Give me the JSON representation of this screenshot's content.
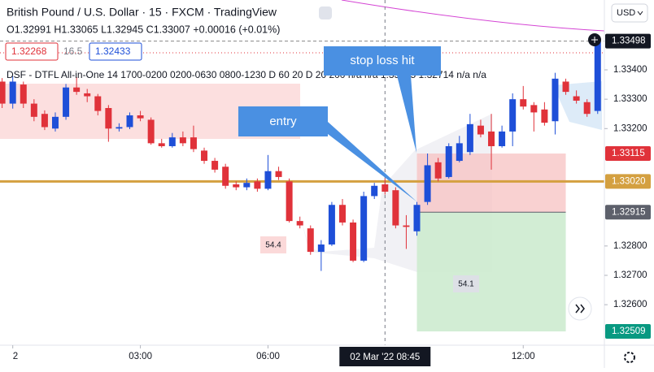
{
  "chart_data": {
    "type": "candlestick",
    "title": "British Pound / U.S. Dollar · 15 · FXCM · TradingView",
    "ohlc_text": "O1.32991 H1.33065 L1.32945 C1.33007 +0.00016 (+0.01%)",
    "bid": "1.32268",
    "spread": "16.5",
    "ask": "1.32433",
    "indicator_text": "DSF - DTFL All-in-One 14 1700-0200 0200-0630 0800-1230 D 60 20 D 20 200 n/a n/a 1.33065 1.32714 n/a n/a",
    "currency": "USD",
    "x": [
      -0.25,
      0,
      0.25,
      0.5,
      0.75,
      1,
      1.25,
      1.5,
      1.75,
      2,
      2.25,
      2.5,
      2.75,
      3,
      3.25,
      3.5,
      3.75,
      4,
      4.25,
      4.5,
      4.75,
      5,
      5.25,
      5.5,
      5.75,
      6,
      6.25,
      6.5,
      6.75,
      7,
      7.25,
      7.5,
      7.75,
      8,
      8.25,
      8.5,
      8.75,
      9,
      9.25,
      9.5,
      9.75,
      10,
      10.25,
      10.5,
      10.75,
      11,
      11.25,
      11.5,
      11.75,
      12,
      12.25,
      12.5,
      12.75,
      13,
      13.25,
      13.5,
      13.75
    ],
    "open": [
      1.3336,
      1.33285,
      1.3335,
      1.33285,
      1.3325,
      1.332,
      1.3324,
      1.3334,
      1.3332,
      1.3331,
      1.3327,
      1.332,
      1.33205,
      1.33245,
      1.3323,
      1.3315,
      1.3314,
      1.3317,
      1.3317,
      1.33125,
      1.3309,
      1.3307,
      1.3301,
      1.33,
      1.3302,
      1.32995,
      1.33055,
      1.3302,
      1.32885,
      1.3286,
      1.3278,
      1.32805,
      1.3294,
      1.3288,
      1.3275,
      1.3297,
      1.3301,
      1.3299,
      1.3287,
      1.3285,
      1.3295,
      1.33085,
      1.33035,
      1.3309,
      1.3312,
      1.3321,
      1.3319,
      1.3314,
      1.3319,
      1.333,
      1.3328,
      1.33265,
      1.33225,
      1.3336,
      1.3331,
      1.3329,
      1.3326
    ],
    "high": [
      1.33372,
      1.33378,
      1.3336,
      1.333,
      1.33262,
      1.33255,
      1.33352,
      1.33375,
      1.33335,
      1.33318,
      1.3328,
      1.33218,
      1.33255,
      1.3326,
      1.33238,
      1.33165,
      1.33185,
      1.3319,
      1.3321,
      1.33135,
      1.331,
      1.3308,
      1.3302,
      1.3303,
      1.3303,
      1.3311,
      1.3307,
      1.3303,
      1.329,
      1.3287,
      1.3282,
      1.3295,
      1.3296,
      1.3289,
      1.32985,
      1.33015,
      1.3303,
      1.33,
      1.32905,
      1.3295,
      1.33115,
      1.331,
      1.3315,
      1.33175,
      1.3325,
      1.3323,
      1.3325,
      1.3321,
      1.3332,
      1.33345,
      1.3329,
      1.3329,
      1.3339,
      1.3337,
      1.3333,
      1.333,
      1.3351
    ],
    "low": [
      1.3327,
      1.33268,
      1.3327,
      1.33225,
      1.33195,
      1.3319,
      1.3323,
      1.33315,
      1.3329,
      1.33245,
      1.33155,
      1.3319,
      1.33198,
      1.33225,
      1.33145,
      1.33135,
      1.33135,
      1.3314,
      1.3312,
      1.3308,
      1.3305,
      1.32995,
      1.3299,
      1.3299,
      1.32985,
      1.3299,
      1.33025,
      1.3288,
      1.3286,
      1.3277,
      1.32715,
      1.328,
      1.3287,
      1.32745,
      1.32745,
      1.3296,
      1.32975,
      1.3286,
      1.3279,
      1.32835,
      1.3294,
      1.3302,
      1.3303,
      1.33085,
      1.3311,
      1.3317,
      1.3306,
      1.33135,
      1.3314,
      1.33265,
      1.3319,
      1.3321,
      1.3318,
      1.33315,
      1.33285,
      1.3324,
      1.3325
    ],
    "close": [
      1.33285,
      1.3336,
      1.33285,
      1.3324,
      1.33205,
      1.3324,
      1.3334,
      1.33325,
      1.3331,
      1.3326,
      1.332,
      1.33205,
      1.33245,
      1.33235,
      1.3315,
      1.3314,
      1.3317,
      1.3315,
      1.3313,
      1.3309,
      1.3306,
      1.33005,
      1.33,
      1.33015,
      1.32995,
      1.33055,
      1.33035,
      1.32885,
      1.3287,
      1.3278,
      1.32805,
      1.3294,
      1.3288,
      1.3275,
      1.3297,
      1.33005,
      1.32985,
      1.3287,
      1.32865,
      1.3294,
      1.33075,
      1.3303,
      1.3314,
      1.3315,
      1.33215,
      1.3318,
      1.3314,
      1.3319,
      1.333,
      1.33275,
      1.33255,
      1.3322,
      1.3337,
      1.33325,
      1.33295,
      1.3325,
      1.33498
    ],
    "up_color": "#1e4fd8",
    "down_color": "#e0323a",
    "xlim": [
      -0.3,
      13.85
    ],
    "ylim": [
      1.32462,
      1.33638
    ],
    "xticks": [
      {
        "value": 0,
        "label": "2"
      },
      {
        "value": 3,
        "label": "03:00"
      },
      {
        "value": 6,
        "label": "06:00"
      },
      {
        "value": 12,
        "label": "12:00"
      }
    ],
    "yticks": [
      {
        "value": 1.334,
        "label": "1.33400"
      },
      {
        "value": 1.333,
        "label": "1.33300"
      },
      {
        "value": 1.332,
        "label": "1.33200"
      },
      {
        "value": 1.328,
        "label": "1.32800"
      },
      {
        "value": 1.327,
        "label": "1.32700"
      },
      {
        "value": 1.326,
        "label": "1.32600"
      }
    ],
    "crosshair": {
      "value": 8.75,
      "label": "02 Mar '22  08:45"
    },
    "price_labels": [
      {
        "value": 1.33498,
        "label": "1.33498",
        "color": "#131722"
      },
      {
        "value": 1.33115,
        "label": "1.33115",
        "color": "#e0323a"
      },
      {
        "value": 1.3302,
        "label": "1.33020",
        "color": "#d4a040"
      },
      {
        "value": 1.32915,
        "label": "1.32915",
        "color": "#5d606b"
      },
      {
        "value": 1.32509,
        "label": "1.32509",
        "color": "#089981"
      }
    ],
    "lines": [
      {
        "value": 1.3302,
        "color": "#d4a040"
      },
      {
        "value": 1.33498,
        "color": "#888888"
      }
    ],
    "position": {
      "start": 9.5,
      "end": 13.0,
      "entry": 1.32915,
      "stop": 1.33115,
      "target": 1.32509
    },
    "annotations": [
      "entry",
      "stop loss hit"
    ],
    "session_labels": [
      "54.4",
      "54.1"
    ]
  }
}
